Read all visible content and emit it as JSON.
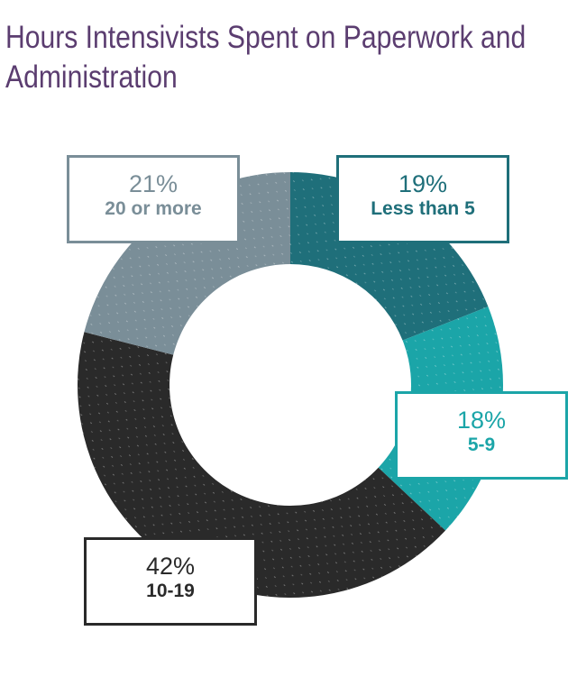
{
  "chart_data": {
    "type": "pie",
    "donut": true,
    "title": "Hours Intensivists Spent on Paperwork and Administration",
    "slices": [
      {
        "label": "Less than 5",
        "value": 19,
        "display": "19%",
        "color": "#1f6f7a"
      },
      {
        "label": "5-9",
        "value": 18,
        "display": "18%",
        "color": "#1ba5a8"
      },
      {
        "label": "10-19",
        "value": 42,
        "display": "42%",
        "color": "#2a2a2a"
      },
      {
        "label": "20 or more",
        "value": 21,
        "display": "21%",
        "color": "#7a8e98"
      }
    ]
  }
}
